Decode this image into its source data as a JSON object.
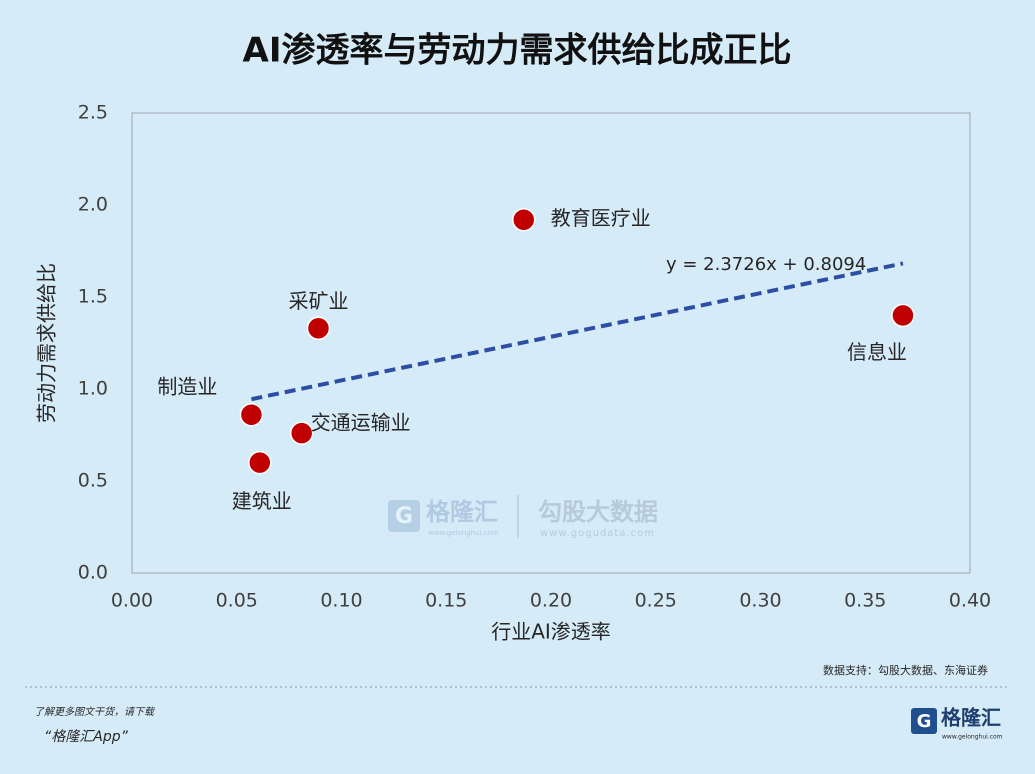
{
  "chart_data": {
    "type": "scatter",
    "title": "AI渗透率与劳动力需求供给比成正比",
    "x_label": "行业AI渗透率",
    "y_label": "劳动力需求供给比",
    "categories": [
      "制造业",
      "建筑业",
      "交通运输业",
      "采矿业",
      "教育医疗业",
      "信息业"
    ],
    "x": [
      0.057,
      0.061,
      0.081,
      0.089,
      0.187,
      0.368
    ],
    "values": [
      0.86,
      0.6,
      0.76,
      1.33,
      1.92,
      1.4
    ],
    "color": "#c00000",
    "trendline": {
      "label": "y = 2.3726x + 0.8094",
      "slope": 2.3726,
      "intercept": 0.8094,
      "color": "#2d4ea3"
    },
    "xlim": [
      0,
      0.4
    ],
    "xticks": [
      {
        "value": 0,
        "label": "0.00"
      },
      {
        "value": 0.05,
        "label": "0.05"
      },
      {
        "value": 0.1,
        "label": "0.10"
      },
      {
        "value": 0.15,
        "label": "0.15"
      },
      {
        "value": 0.2,
        "label": "0.20"
      },
      {
        "value": 0.25,
        "label": "0.25"
      },
      {
        "value": 0.3,
        "label": "0.30"
      },
      {
        "value": 0.35,
        "label": "0.35"
      },
      {
        "value": 0.4,
        "label": "0.40"
      }
    ],
    "ylim": [
      0,
      2.5
    ],
    "yticks": [
      {
        "value": 0,
        "label": "0.0"
      },
      {
        "value": 0.5,
        "label": "0.5"
      },
      {
        "value": 1,
        "label": "1.0"
      },
      {
        "value": 1.5,
        "label": "1.5"
      },
      {
        "value": 2,
        "label": "2.0"
      },
      {
        "value": 2.5,
        "label": "2.5"
      }
    ],
    "source": "数据支持：勾股大数据、东海证券"
  },
  "watermark": {
    "brand": "格隆汇",
    "brand_url": "www.gelonghui.com",
    "partner": "勾股大数据",
    "partner_url": "www.gogudata.com"
  },
  "footer": {
    "prompt": "了解更多图文干货，请下载",
    "app": "“格隆汇App”",
    "logo": "格隆汇",
    "logo_url": "www.gelonghui.com"
  }
}
